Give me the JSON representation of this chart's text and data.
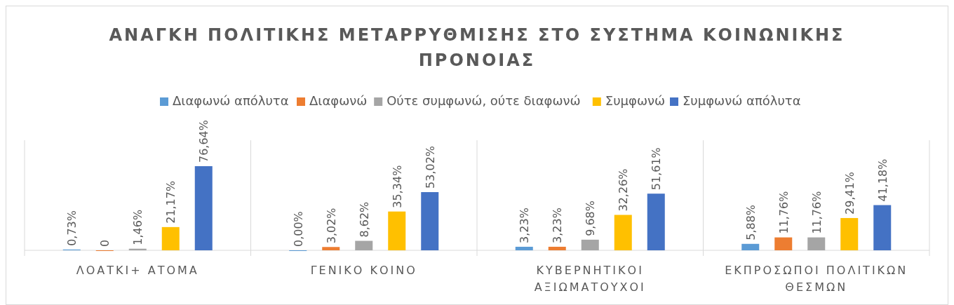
{
  "chart_data": {
    "type": "bar",
    "title": "ΑΝΑΓΚΗ ΠΟΛΙΤΙΚΗΣ ΜΕΤΑΡΡΥΘΜΙΣΗΣ ΣΤΟ ΣΥΣΤΗΜΑ ΚΟΙΝΩΝΙΚΗΣ ΠΡΟΝΟΙΑΣ",
    "categories": [
      "ΛΟΑΤΚΙ+ ΑΤΟΜΑ",
      "ΓΕΝΙΚΟ ΚΟΙΝΟ",
      "ΚΥΒΕΡΝΗΤΙΚΟΙ ΑΞΙΩΜΑΤΟΥΧΟΙ",
      "ΕΚΠΡΟΣΩΠΟΙ ΠΟΛΙΤΙΚΩΝ ΘΕΣΜΩΝ"
    ],
    "series": [
      {
        "name": "Διαφωνώ απόλυτα",
        "color": "#5b9bd5",
        "values": [
          0.73,
          0,
          3.23,
          5.88
        ],
        "value_labels": [
          "0,73%",
          "0,00%",
          "3,23%",
          "5,88%"
        ]
      },
      {
        "name": "Διαφωνώ",
        "color": "#ed7d31",
        "values": [
          0,
          3.02,
          3.23,
          11.76
        ],
        "value_labels": [
          "0",
          "3,02%",
          "3,23%",
          "11,76%"
        ]
      },
      {
        "name": "Ούτε συμφωνώ, ούτε διαφωνώ",
        "color": "#a5a5a5",
        "values": [
          1.46,
          8.62,
          9.68,
          11.76
        ],
        "value_labels": [
          "1,46%",
          "8,62%",
          "9,68%",
          "11,76%"
        ]
      },
      {
        "name": "Συμφωνώ",
        "color": "#ffc000",
        "values": [
          21.17,
          35.34,
          32.26,
          29.41
        ],
        "value_labels": [
          "21,17%",
          "35,34%",
          "32,26%",
          "29,41%"
        ]
      },
      {
        "name": "Συμφωνώ απόλυτα",
        "color": "#4472c4",
        "values": [
          76.64,
          53.02,
          51.61,
          41.18
        ],
        "value_labels": [
          "76,64%",
          "53,02%",
          "51,61%",
          "41,18%"
        ]
      }
    ],
    "legend": "top"
  }
}
